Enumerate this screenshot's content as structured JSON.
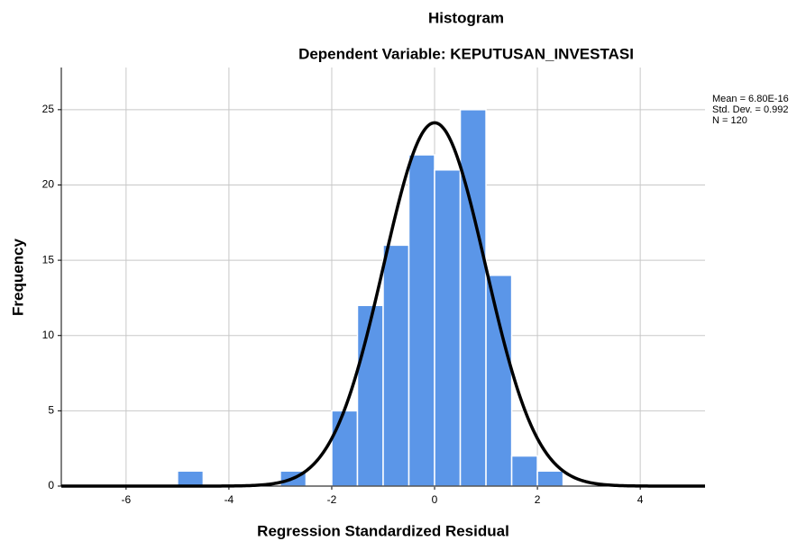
{
  "chart_data": {
    "type": "histogram",
    "title": "Histogram",
    "subtitle": "Dependent Variable: KEPUTUSAN_INVESTASI",
    "xlabel": "Regression Standardized Residual",
    "ylabel": "Frequency",
    "bins": [
      -5,
      -4.5,
      -4,
      -3.5,
      -3,
      -2.5,
      -2,
      -1.5,
      -1,
      -0.5,
      0,
      0.5,
      1,
      1.5,
      2,
      2.5
    ],
    "values": [
      1,
      0,
      0,
      0,
      1,
      0,
      5,
      12,
      16,
      22,
      21,
      25,
      14,
      2,
      1
    ],
    "color": "#5b96e8",
    "xlim": [
      -7.26,
      5.26
    ],
    "xticks": [
      -6,
      -4,
      -2,
      0,
      2,
      4
    ],
    "ylim": [
      0,
      27.8
    ],
    "yticks": [
      0,
      5,
      10,
      15,
      20,
      25
    ],
    "grid": true,
    "annotations": [
      "Mean = 6.80E-16",
      "Std. Dev. = 0.992",
      "N = 120"
    ],
    "normal_curve": {
      "mean": 6.8e-16,
      "sd": 0.992,
      "n": 120,
      "color": "#000000"
    }
  }
}
